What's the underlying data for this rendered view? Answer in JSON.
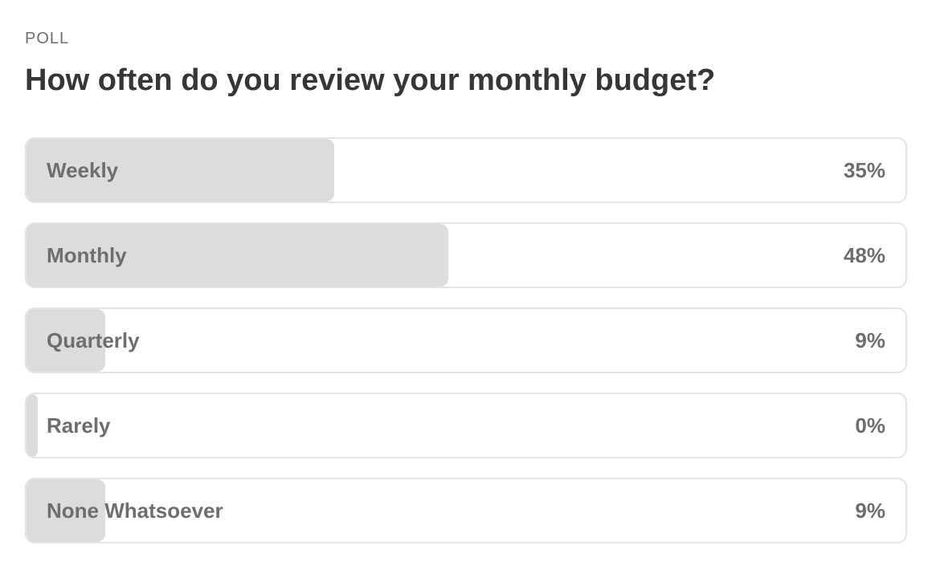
{
  "poll": {
    "eyebrow": "POLL",
    "question": "How often do you review your monthly budget?",
    "options": [
      {
        "label": "Weekly",
        "percent_label": "35%",
        "percent": 35
      },
      {
        "label": "Monthly",
        "percent_label": "48%",
        "percent": 48
      },
      {
        "label": "Quarterly",
        "percent_label": "9%",
        "percent": 9
      },
      {
        "label": "Rarely",
        "percent_label": "0%",
        "percent": 0
      },
      {
        "label": "None Whatsoever",
        "percent_label": "9%",
        "percent": 9
      }
    ]
  },
  "colors": {
    "fill": "#dcdcdc",
    "border": "#e4e4e4",
    "option_text": "#6e6e6e",
    "question_text": "#363636"
  }
}
